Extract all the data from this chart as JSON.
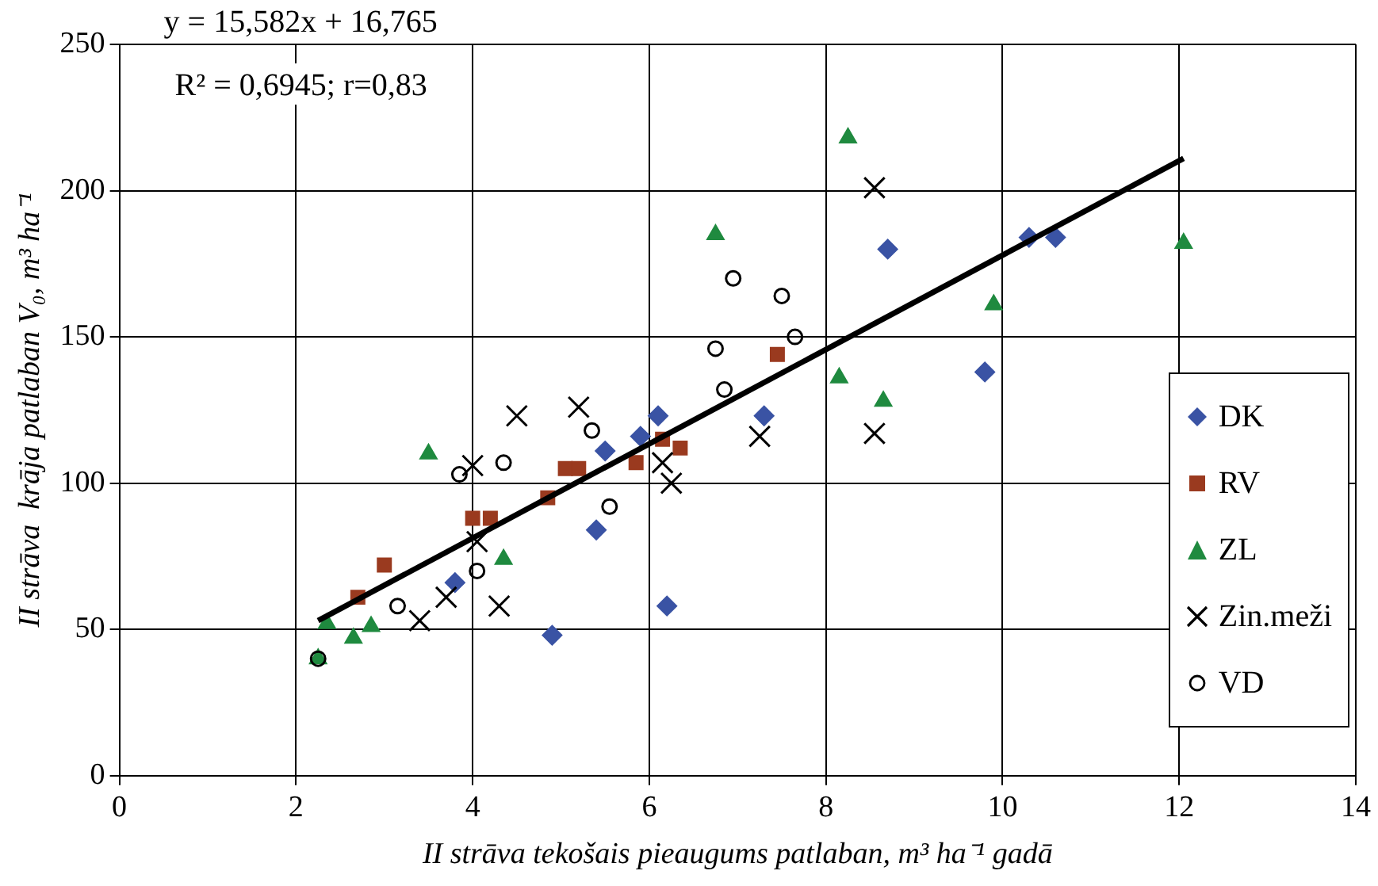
{
  "chart_data": {
    "type": "scatter",
    "xlabel": "II strāva tekošais pieaugums patlaban, m³ ha⁻¹ gadā",
    "ylabel": "II strāva  krāja patlaban V₀, m³ ha⁻¹",
    "annotations": [
      "y = 15,582x + 16,765",
      "R² = 0,6945; r=0,83"
    ],
    "xlim": [
      0,
      14
    ],
    "xticks": [
      0,
      2,
      4,
      6,
      8,
      10,
      12,
      14
    ],
    "ylim": [
      0,
      250
    ],
    "yticks": [
      0,
      50,
      100,
      150,
      200,
      250
    ],
    "grid": true,
    "legend": "bottom right",
    "series": [
      {
        "name": "DK",
        "color": "#3a53a4",
        "marker": "diamond",
        "x": [
          4.9,
          6.2,
          3.8,
          5.4,
          5.5,
          5.9,
          6.1,
          7.3,
          8.7,
          9.8,
          10.3,
          10.6
        ],
        "values": [
          48,
          58,
          66,
          84,
          111,
          116,
          123,
          123,
          180,
          138,
          184,
          184
        ]
      },
      {
        "name": "RV",
        "color": "#9a3a1f",
        "marker": "square",
        "x": [
          2.7,
          3.0,
          4.0,
          4.2,
          4.85,
          5.05,
          5.2,
          5.85,
          6.15,
          6.35,
          7.45
        ],
        "values": [
          61,
          72,
          88,
          88,
          95,
          105,
          105,
          107,
          115,
          112,
          144
        ]
      },
      {
        "name": "ZL",
        "color": "#1f8a3f",
        "marker": "triangle",
        "x": [
          2.25,
          2.35,
          2.65,
          2.85,
          3.5,
          4.35,
          6.75,
          9.9,
          8.15,
          8.65,
          8.25,
          12.05
        ],
        "values": [
          40,
          52,
          47,
          51,
          110,
          74,
          185,
          161,
          136,
          128,
          218,
          182
        ]
      },
      {
        "name": "Zin.meži",
        "color": "#000000",
        "marker": "cross",
        "x": [
          3.4,
          3.7,
          4.0,
          4.05,
          4.3,
          4.5,
          5.2,
          6.15,
          6.25,
          7.25,
          8.55,
          8.55
        ],
        "values": [
          53,
          61,
          106,
          80,
          58,
          123,
          126,
          107,
          100,
          116,
          117,
          201
        ]
      },
      {
        "name": "VD",
        "color": "#000000",
        "marker": "circle",
        "x": [
          2.25,
          3.15,
          4.05,
          3.85,
          4.35,
          5.35,
          5.55,
          6.95,
          7.5,
          7.65,
          6.75,
          6.85
        ],
        "values": [
          40,
          58,
          70,
          103,
          107,
          118,
          92,
          170,
          164,
          150,
          146,
          132
        ]
      },
      {
        "type": "line",
        "color": "#000000",
        "marker": "none",
        "x": [
          2.25,
          12.05
        ],
        "values": [
          53,
          211
        ]
      }
    ]
  }
}
